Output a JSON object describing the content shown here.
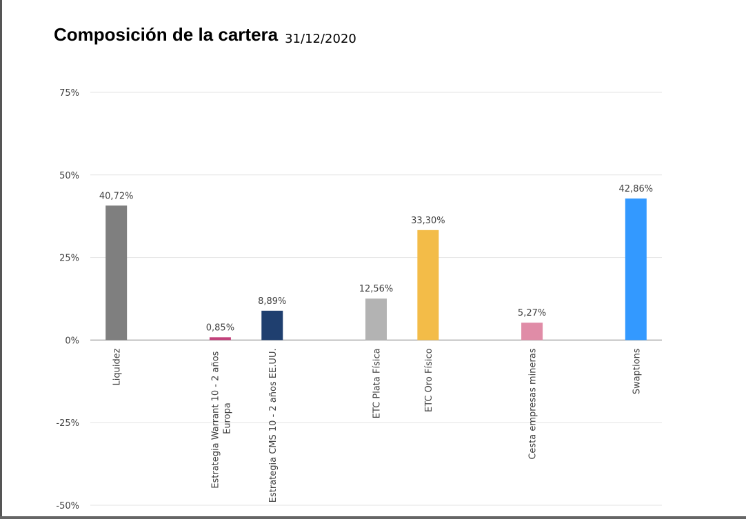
{
  "chart_data": {
    "type": "bar",
    "title": "Composición de la cartera",
    "subtitle": "31/12/2020",
    "categories": [
      "Liquidez",
      null,
      "Estrategia Warrant 10 - 2 años Europa",
      "Estrategia CMS 10 - 2 años EE.UU.",
      null,
      "ETC Plata Física",
      "ETC Oro Físico",
      null,
      "Cesta empresas mineras",
      null,
      "Swaptions"
    ],
    "values": [
      40.72,
      null,
      0.85,
      8.89,
      null,
      12.56,
      33.3,
      null,
      5.27,
      null,
      42.86
    ],
    "value_labels": [
      "40,72%",
      null,
      "0,85%",
      "8,89%",
      null,
      "12,56%",
      "33,30%",
      null,
      "5,27%",
      null,
      "42,86%"
    ],
    "colors": [
      "#7f7f7f",
      null,
      "#c2417b",
      "#1f3f6f",
      null,
      "#b3b3b3",
      "#f3bc48",
      null,
      "#e08ca7",
      null,
      "#3399ff"
    ],
    "ylim": [
      -50,
      75
    ],
    "yticks": [
      {
        "value": -50,
        "label": "-50%"
      },
      {
        "value": -25,
        "label": "-25%"
      },
      {
        "value": 0,
        "label": "0%"
      },
      {
        "value": 25,
        "label": "25%"
      },
      {
        "value": 50,
        "label": "50%"
      },
      {
        "value": 75,
        "label": "75%"
      }
    ],
    "grid": true
  }
}
